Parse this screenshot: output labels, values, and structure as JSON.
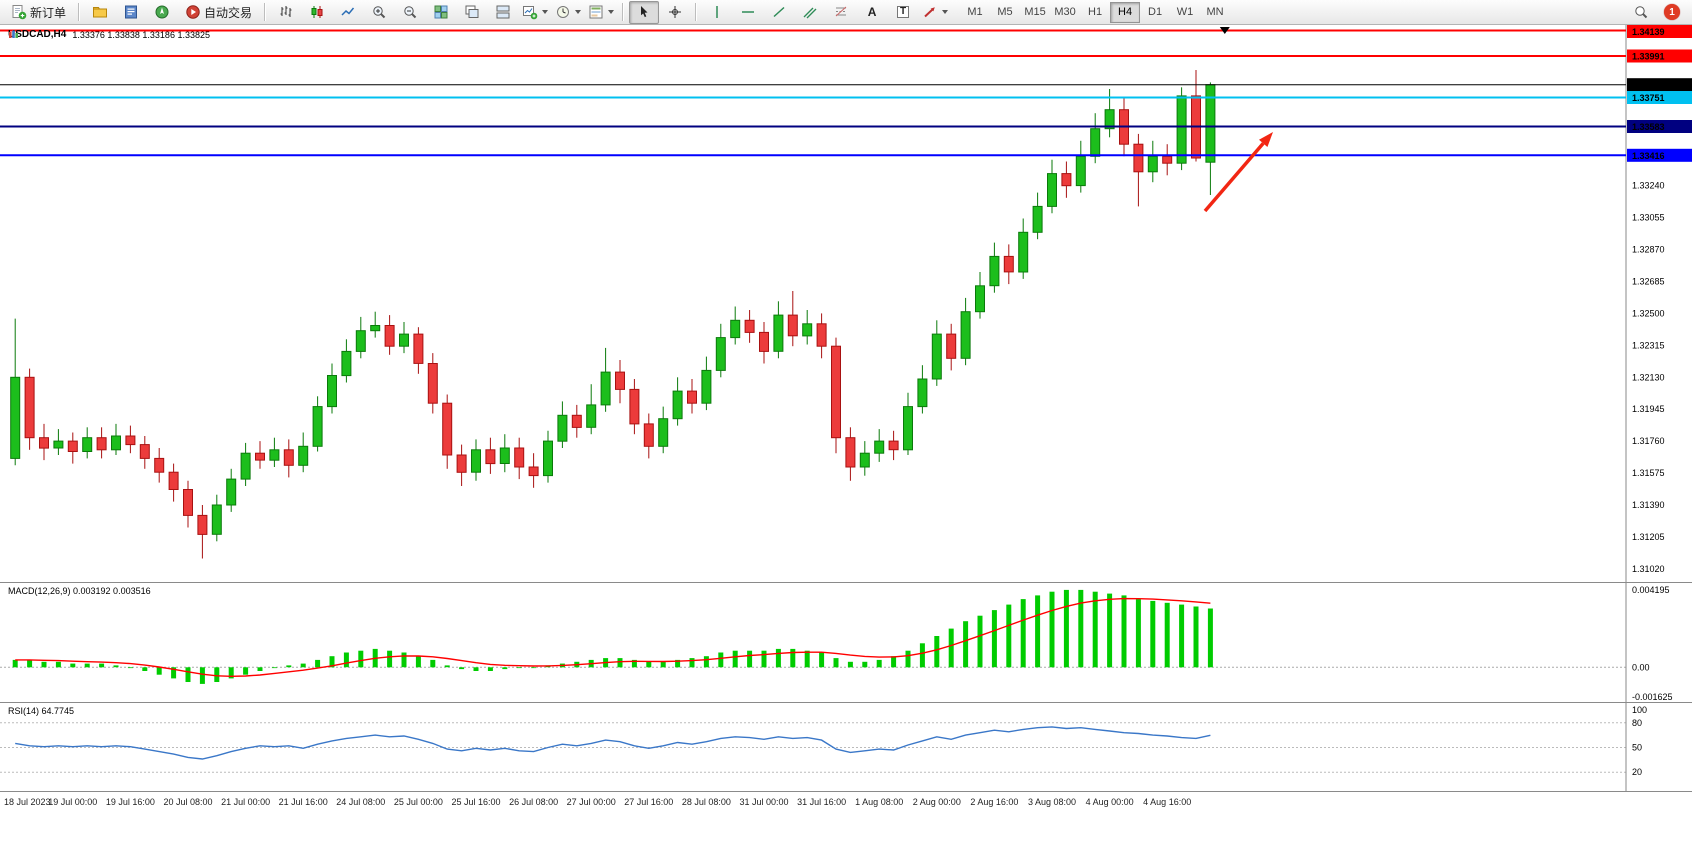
{
  "toolbar": {
    "new_order_label": "新订单",
    "autotrading_label": "自动交易",
    "text_tool_glyph": "A",
    "label_tool_glyph": "T",
    "timeframes": [
      "M1",
      "M5",
      "M15",
      "M30",
      "H1",
      "H4",
      "D1",
      "W1",
      "MN"
    ],
    "active_timeframe": "H4",
    "notification_count": "1"
  },
  "chart_data": [
    {
      "type": "candlestick",
      "title": "USDCAD,H4",
      "ohlc_label": "1.33376 1.33838 1.33186 1.33825",
      "up_color": "#1CBE1C",
      "up_stroke": "#0A7A0A",
      "down_color": "#EC3B3B",
      "down_stroke": "#A81111",
      "y_range": [
        1.30944,
        1.34165
      ],
      "y_axis_labels": [
        "1.33240",
        "1.33055",
        "1.32870",
        "1.32685",
        "1.32500",
        "1.32315",
        "1.32130",
        "1.31945",
        "1.31760",
        "1.31575",
        "1.31390",
        "1.31205",
        "1.31020"
      ],
      "levels": [
        {
          "price": 1.34139,
          "label": "1.34139",
          "color": "#FF0000",
          "text_color": "#FFFFFF",
          "width": 2
        },
        {
          "price": 1.33991,
          "label": "1.33991",
          "color": "#FF0000",
          "text_color": "#FFFFFF",
          "width": 2
        },
        {
          "price": 1.33825,
          "label": "1.33825",
          "color": "#000000",
          "text_color": "#FFFFFF",
          "width": 1
        },
        {
          "price": 1.33751,
          "label": "1.33751",
          "color": "#00C0F0",
          "text_color": "#000000",
          "width": 2
        },
        {
          "price": 1.33583,
          "label": "1.33583",
          "color": "#000080",
          "text_color": "#FFFFFF",
          "width": 2
        },
        {
          "price": 1.33416,
          "label": "1.33416",
          "color": "#0000FF",
          "text_color": "#FFFFFF",
          "width": 2
        }
      ],
      "annotation_arrow": {
        "from": [
          1205,
          186
        ],
        "to": [
          1273,
          107
        ],
        "color": "#F22613"
      },
      "candles": [
        [
          1.3166,
          1.3247,
          1.3162,
          1.3213
        ],
        [
          1.3213,
          1.3218,
          1.3171,
          1.3178
        ],
        [
          1.3178,
          1.3186,
          1.3165,
          1.3172
        ],
        [
          1.3172,
          1.3183,
          1.3168,
          1.3176
        ],
        [
          1.3176,
          1.3181,
          1.3163,
          1.317
        ],
        [
          1.317,
          1.3184,
          1.3166,
          1.3178
        ],
        [
          1.3178,
          1.3184,
          1.3166,
          1.3171
        ],
        [
          1.3171,
          1.3186,
          1.3168,
          1.3179
        ],
        [
          1.3179,
          1.3185,
          1.3169,
          1.3174
        ],
        [
          1.3174,
          1.3179,
          1.316,
          1.3166
        ],
        [
          1.3166,
          1.3172,
          1.3152,
          1.3158
        ],
        [
          1.3158,
          1.3163,
          1.3141,
          1.3148
        ],
        [
          1.3148,
          1.3153,
          1.3126,
          1.3133
        ],
        [
          1.3133,
          1.3139,
          1.3108,
          1.3122
        ],
        [
          1.3122,
          1.3145,
          1.3118,
          1.3139
        ],
        [
          1.3139,
          1.316,
          1.3135,
          1.3154
        ],
        [
          1.3154,
          1.3175,
          1.315,
          1.3169
        ],
        [
          1.3169,
          1.3176,
          1.316,
          1.3165
        ],
        [
          1.3165,
          1.3178,
          1.3161,
          1.3171
        ],
        [
          1.3171,
          1.3177,
          1.3155,
          1.3162
        ],
        [
          1.3162,
          1.3181,
          1.3158,
          1.3173
        ],
        [
          1.3173,
          1.3202,
          1.317,
          1.3196
        ],
        [
          1.3196,
          1.3221,
          1.3192,
          1.3214
        ],
        [
          1.3214,
          1.3235,
          1.321,
          1.3228
        ],
        [
          1.3228,
          1.3248,
          1.3224,
          1.324
        ],
        [
          1.324,
          1.3251,
          1.3236,
          1.3243
        ],
        [
          1.3243,
          1.3249,
          1.3226,
          1.3231
        ],
        [
          1.3231,
          1.3245,
          1.3227,
          1.3238
        ],
        [
          1.3238,
          1.3242,
          1.3215,
          1.3221
        ],
        [
          1.3221,
          1.3227,
          1.3192,
          1.3198
        ],
        [
          1.3198,
          1.3203,
          1.316,
          1.3168
        ],
        [
          1.3168,
          1.3174,
          1.315,
          1.3158
        ],
        [
          1.3158,
          1.3177,
          1.3153,
          1.3171
        ],
        [
          1.3171,
          1.3178,
          1.3157,
          1.3163
        ],
        [
          1.3163,
          1.318,
          1.3158,
          1.3172
        ],
        [
          1.3172,
          1.3178,
          1.3154,
          1.3161
        ],
        [
          1.3161,
          1.3169,
          1.3149,
          1.3156
        ],
        [
          1.3156,
          1.3182,
          1.3152,
          1.3176
        ],
        [
          1.3176,
          1.3199,
          1.3172,
          1.3191
        ],
        [
          1.3191,
          1.3197,
          1.3178,
          1.3184
        ],
        [
          1.3184,
          1.3209,
          1.318,
          1.3197
        ],
        [
          1.3197,
          1.323,
          1.3193,
          1.3216
        ],
        [
          1.3216,
          1.3223,
          1.3198,
          1.3206
        ],
        [
          1.3206,
          1.3212,
          1.318,
          1.3186
        ],
        [
          1.3186,
          1.3192,
          1.3166,
          1.3173
        ],
        [
          1.3173,
          1.3196,
          1.3169,
          1.3189
        ],
        [
          1.3189,
          1.3213,
          1.3185,
          1.3205
        ],
        [
          1.3205,
          1.3212,
          1.3192,
          1.3198
        ],
        [
          1.3198,
          1.3225,
          1.3194,
          1.3217
        ],
        [
          1.3217,
          1.3244,
          1.3213,
          1.3236
        ],
        [
          1.3236,
          1.3254,
          1.3232,
          1.3246
        ],
        [
          1.3246,
          1.3252,
          1.3233,
          1.3239
        ],
        [
          1.3239,
          1.3245,
          1.3221,
          1.3228
        ],
        [
          1.3228,
          1.3257,
          1.3224,
          1.3249
        ],
        [
          1.3249,
          1.3263,
          1.3231,
          1.3237
        ],
        [
          1.3237,
          1.3252,
          1.3232,
          1.3244
        ],
        [
          1.3244,
          1.325,
          1.3224,
          1.3231
        ],
        [
          1.3231,
          1.3236,
          1.3169,
          1.3178
        ],
        [
          1.3178,
          1.3184,
          1.3153,
          1.3161
        ],
        [
          1.3161,
          1.3176,
          1.3156,
          1.3169
        ],
        [
          1.3169,
          1.3183,
          1.3164,
          1.3176
        ],
        [
          1.3176,
          1.3182,
          1.3165,
          1.3171
        ],
        [
          1.3171,
          1.3204,
          1.3168,
          1.3196
        ],
        [
          1.3196,
          1.322,
          1.3192,
          1.3212
        ],
        [
          1.3212,
          1.3246,
          1.3208,
          1.3238
        ],
        [
          1.3238,
          1.3244,
          1.3217,
          1.3224
        ],
        [
          1.3224,
          1.3259,
          1.322,
          1.3251
        ],
        [
          1.3251,
          1.3274,
          1.3247,
          1.3266
        ],
        [
          1.3266,
          1.3291,
          1.3262,
          1.3283
        ],
        [
          1.3283,
          1.329,
          1.3267,
          1.3274
        ],
        [
          1.3274,
          1.3305,
          1.327,
          1.3297
        ],
        [
          1.3297,
          1.332,
          1.3293,
          1.3312
        ],
        [
          1.3312,
          1.3339,
          1.3308,
          1.3331
        ],
        [
          1.3331,
          1.3338,
          1.3317,
          1.3324
        ],
        [
          1.3324,
          1.335,
          1.332,
          1.3341
        ],
        [
          1.3341,
          1.3366,
          1.3337,
          1.3357
        ],
        [
          1.3357,
          1.338,
          1.3352,
          1.3368
        ],
        [
          1.3368,
          1.3375,
          1.3341,
          1.3348
        ],
        [
          1.3348,
          1.3354,
          1.3312,
          1.3332
        ],
        [
          1.3332,
          1.335,
          1.3326,
          1.3341
        ],
        [
          1.3341,
          1.3348,
          1.333,
          1.3337
        ],
        [
          1.3337,
          1.3381,
          1.3333,
          1.3376
        ],
        [
          1.3376,
          1.3391,
          1.3338,
          1.334
        ],
        [
          1.33376,
          1.33838,
          1.33186,
          1.33825
        ]
      ]
    },
    {
      "type": "bar",
      "name": "MACD",
      "label": "MACD(12,26,9) 0.003192 0.003516",
      "bar_color": "#00CC00",
      "signal_color": "#FF0000",
      "signal_period": 9,
      "y_range": [
        -0.001829,
        0.004573
      ],
      "y_axis_labels": [
        "0.004195",
        "0.00",
        "-0.001625"
      ],
      "values": [
        0.0004,
        0.0004,
        0.0003,
        0.0003,
        0.0002,
        0.0002,
        0.0002,
        0.0001,
        0.0,
        -0.0002,
        -0.0004,
        -0.0006,
        -0.0008,
        -0.0009,
        -0.0008,
        -0.0006,
        -0.0004,
        -0.0002,
        0.0,
        0.0001,
        0.0002,
        0.0004,
        0.0006,
        0.0008,
        0.0009,
        0.001,
        0.0009,
        0.0008,
        0.0006,
        0.0004,
        0.0001,
        -0.0001,
        -0.0002,
        -0.0002,
        -0.0001,
        0.0,
        0.0,
        0.0001,
        0.0002,
        0.0003,
        0.0004,
        0.0005,
        0.0005,
        0.0004,
        0.0003,
        0.0003,
        0.0004,
        0.0005,
        0.0006,
        0.0008,
        0.0009,
        0.0009,
        0.0009,
        0.001,
        0.001,
        0.0009,
        0.0008,
        0.0005,
        0.0003,
        0.0003,
        0.0004,
        0.0006,
        0.0009,
        0.0013,
        0.0017,
        0.0021,
        0.0025,
        0.0028,
        0.0031,
        0.0034,
        0.0037,
        0.0039,
        0.0041,
        0.0042,
        0.0042,
        0.0041,
        0.004,
        0.0039,
        0.0037,
        0.0036,
        0.0035,
        0.0034,
        0.0033,
        0.003192
      ]
    },
    {
      "type": "line",
      "name": "RSI",
      "label": "RSI(14) 64.7745",
      "line_color": "#3A77C8",
      "level_lines": [
        80,
        50,
        20
      ],
      "y_range": [
        -1.6,
        104
      ],
      "y_axis_labels": [
        "100",
        "80",
        "50",
        "20"
      ],
      "values": [
        55,
        52,
        51,
        52,
        51,
        52,
        51,
        52,
        51,
        48,
        45,
        42,
        38,
        36,
        40,
        45,
        49,
        52,
        51,
        52,
        49,
        54,
        58,
        61,
        63,
        65,
        63,
        64,
        60,
        55,
        48,
        46,
        49,
        47,
        49,
        46,
        45,
        50,
        54,
        52,
        55,
        59,
        57,
        52,
        49,
        52,
        56,
        54,
        57,
        61,
        63,
        62,
        60,
        63,
        61,
        62,
        59,
        48,
        44,
        46,
        48,
        47,
        53,
        58,
        63,
        60,
        65,
        68,
        71,
        69,
        72,
        74,
        75,
        73,
        74,
        72,
        70,
        68,
        67,
        65,
        64,
        62,
        61,
        64.77
      ]
    }
  ],
  "time_axis": {
    "bars_per_label": 4,
    "labels": [
      "18 Jul 2023",
      "19 Jul 00:00",
      "19 Jul 16:00",
      "20 Jul 08:00",
      "21 Jul 00:00",
      "21 Jul 16:00",
      "24 Jul 08:00",
      "25 Jul 00:00",
      "25 Jul 16:00",
      "26 Jul 08:00",
      "27 Jul 00:00",
      "27 Jul 16:00",
      "28 Jul 08:00",
      "31 Jul 00:00",
      "31 Jul 16:00",
      "1 Aug 08:00",
      "2 Aug 00:00",
      "2 Aug 16:00",
      "3 Aug 08:00",
      "4 Aug 00:00",
      "4 Aug 16:00"
    ]
  }
}
